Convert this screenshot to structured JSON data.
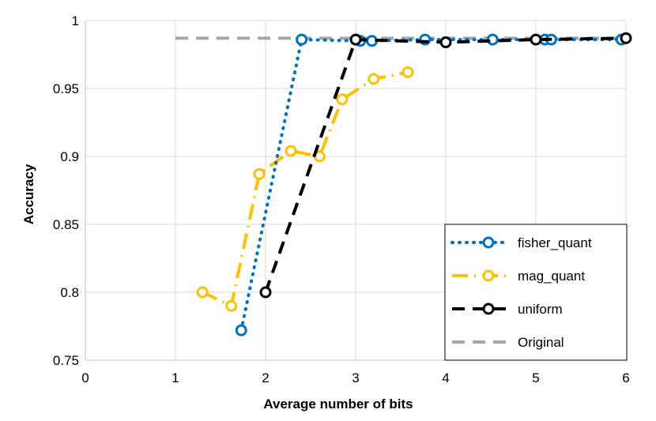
{
  "chart_data": {
    "type": "line",
    "title": "",
    "xlabel": "Average number of bits",
    "ylabel": "Accuracy",
    "xlim": [
      0,
      6
    ],
    "ylim": [
      0.75,
      1
    ],
    "xticks": [
      0,
      1,
      2,
      3,
      4,
      5,
      6
    ],
    "yticks": [
      0.75,
      0.8,
      0.85,
      0.9,
      0.95,
      1
    ],
    "xtick_labels": [
      "0",
      "1",
      "2",
      "3",
      "4",
      "5",
      "6"
    ],
    "ytick_labels": [
      "0.75",
      "0.8",
      "0.85",
      "0.9",
      "0.95",
      "1"
    ],
    "grid": "both",
    "legend_position": "bottom-right",
    "series": [
      {
        "name": "fisher_quant",
        "color": "#0070C0",
        "style": "dotted",
        "marker": "circle",
        "x": [
          1.73,
          2.4,
          3.05,
          3.18,
          3.77,
          4.52,
          5.1,
          5.17,
          5.95
        ],
        "y": [
          0.772,
          0.986,
          0.985,
          0.985,
          0.986,
          0.986,
          0.986,
          0.986,
          0.986
        ]
      },
      {
        "name": "mag_quant",
        "color": "#FFC000",
        "style": "dashdot",
        "marker": "circle",
        "x": [
          1.3,
          1.62,
          1.93,
          2.28,
          2.6,
          2.85,
          3.2,
          3.58
        ],
        "y": [
          0.8,
          0.79,
          0.887,
          0.904,
          0.9,
          0.942,
          0.957,
          0.962
        ]
      },
      {
        "name": "uniform",
        "color": "#000000",
        "style": "dashed",
        "marker": "circle",
        "x": [
          2,
          3,
          4,
          5,
          6
        ],
        "y": [
          0.8,
          0.986,
          0.984,
          0.986,
          0.987
        ]
      },
      {
        "name": "Original",
        "color": "#A6A6A6",
        "style": "dashed",
        "marker": "none",
        "x": [
          1,
          6
        ],
        "y": [
          0.987,
          0.987
        ]
      }
    ]
  }
}
